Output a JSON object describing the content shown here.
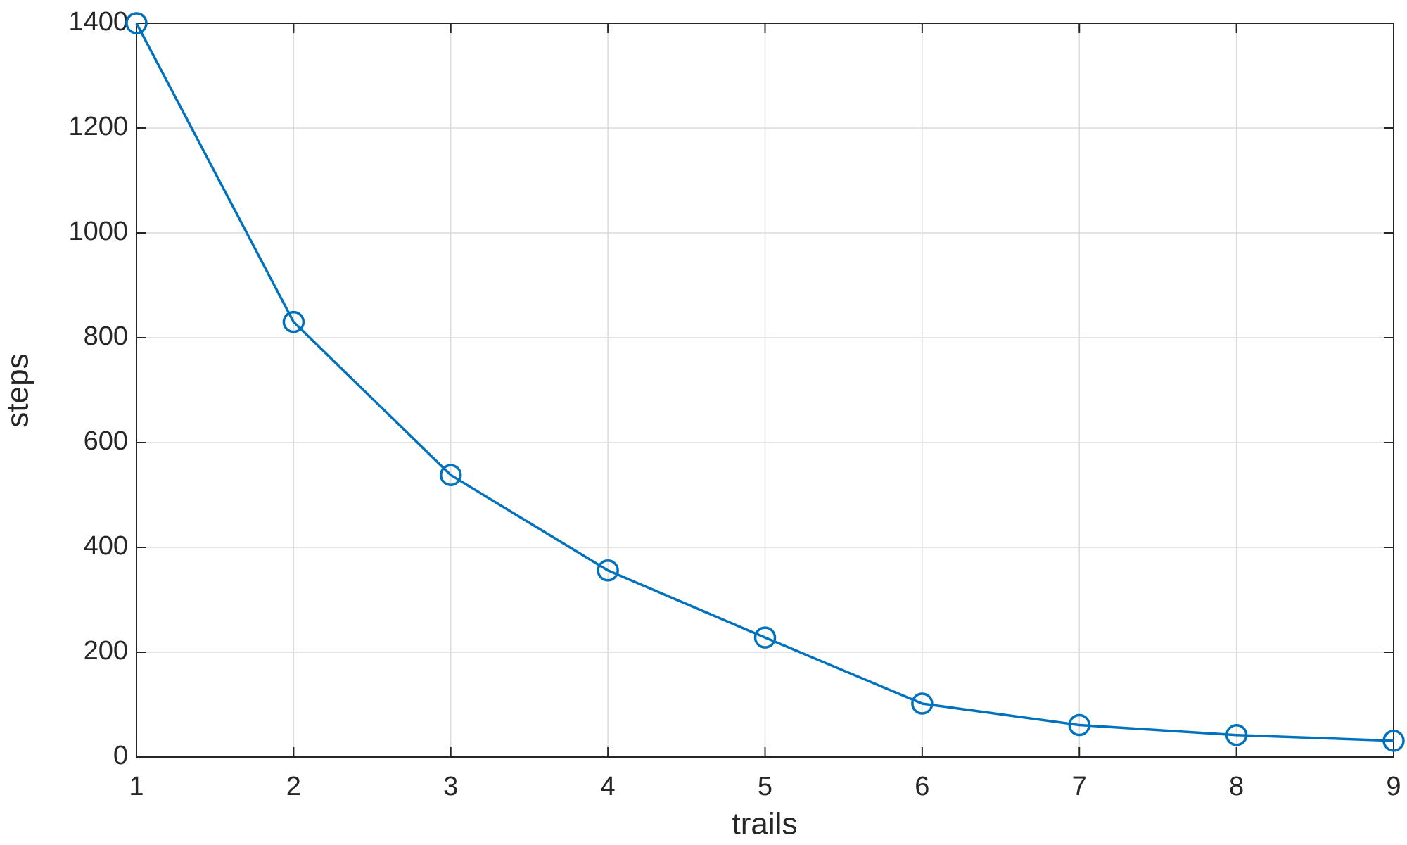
{
  "chart_data": {
    "type": "line",
    "x_label": "trails",
    "y_label": "steps",
    "x": [
      1,
      2,
      3,
      4,
      5,
      6,
      7,
      8,
      9
    ],
    "series": [
      {
        "values": [
          1400,
          830,
          538,
          356,
          228,
          102,
          61,
          42,
          31
        ],
        "color": "#0072bd",
        "marker": "circle"
      }
    ],
    "xlim": [
      1,
      9
    ],
    "xticks": [
      1,
      2,
      3,
      4,
      5,
      6,
      7,
      8,
      9
    ],
    "ylim": [
      0,
      1400
    ],
    "yticks": [
      0,
      200,
      400,
      600,
      800,
      1000,
      1200,
      1400
    ],
    "grid": true
  }
}
